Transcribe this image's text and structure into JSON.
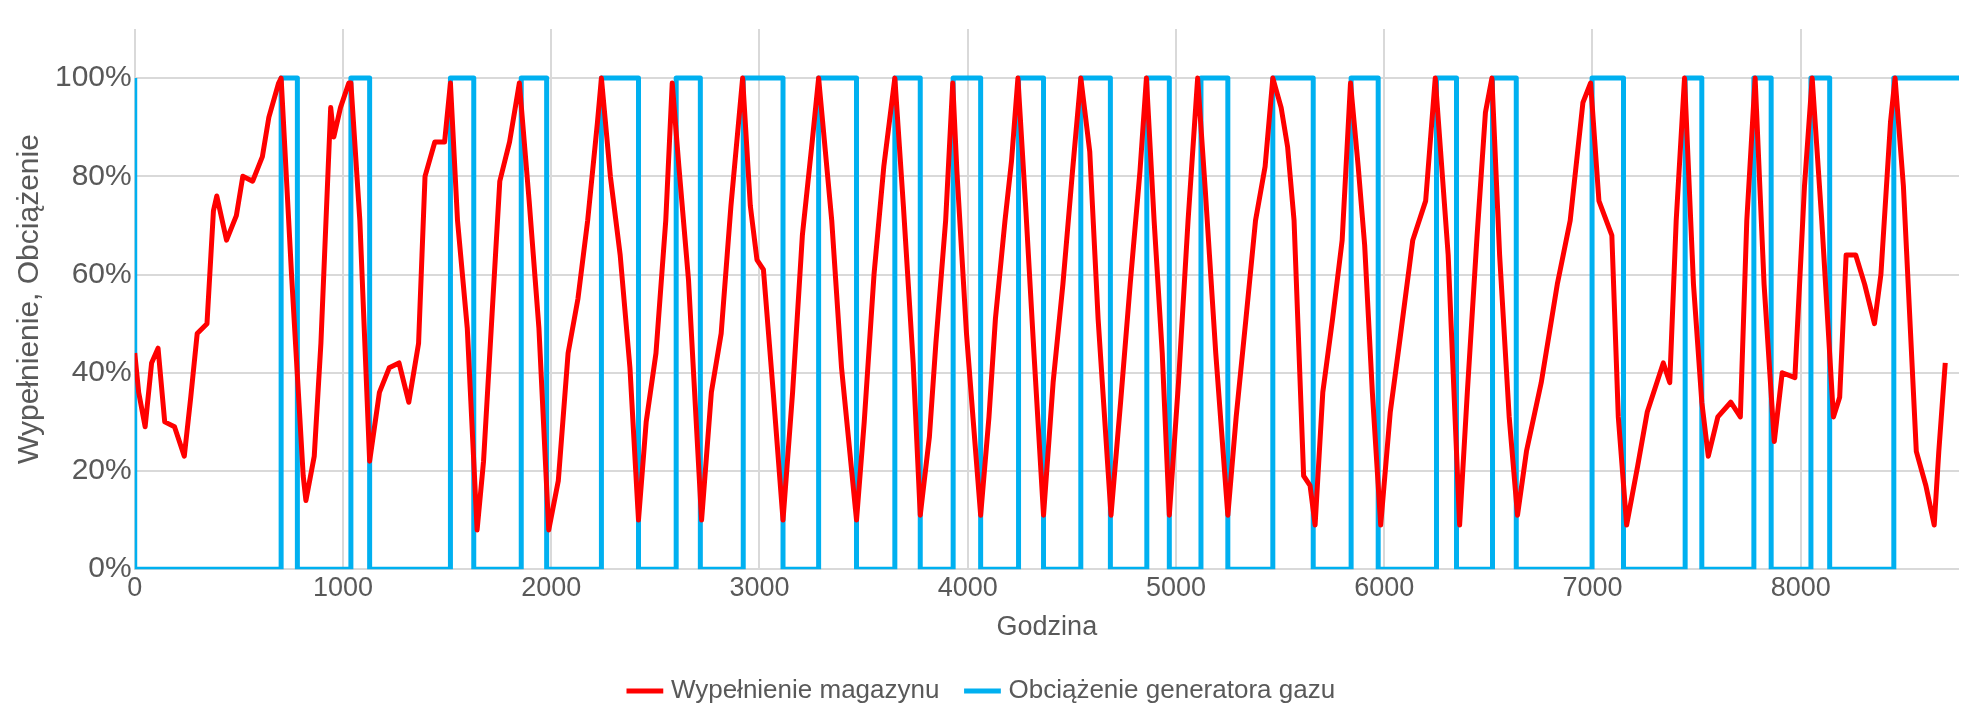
{
  "chart_data": {
    "type": "line",
    "xlabel": "Godzina",
    "ylabel": "Wypełnienie, Obciążenie",
    "xlim": [
      0,
      8760
    ],
    "xticks": [
      0,
      1000,
      2000,
      3000,
      4000,
      5000,
      6000,
      7000,
      8000
    ],
    "ylim": [
      0,
      110
    ],
    "yticks": [
      {
        "value": 0,
        "label": "0%"
      },
      {
        "value": 20,
        "label": "20%"
      },
      {
        "value": 40,
        "label": "40%"
      },
      {
        "value": 60,
        "label": "60%"
      },
      {
        "value": 80,
        "label": "80%"
      },
      {
        "value": 100,
        "label": "100%"
      }
    ],
    "grid": true,
    "legend": "bottom",
    "marker": "none",
    "series": [
      {
        "name": "Wypełnienie magazynu",
        "color": "#ff0000",
        "x": [
          0,
          19,
          50,
          81,
          112,
          144,
          191,
          238,
          269,
          300,
          347,
          378,
          394,
          441,
          488,
          519,
          566,
          613,
          644,
          691,
          703,
          753,
          809,
          822,
          862,
          894,
          941,
          956,
          988,
          1028,
          1038,
          1081,
          1128,
          1175,
          1222,
          1269,
          1316,
          1363,
          1394,
          1441,
          1488,
          1516,
          1550,
          1597,
          1644,
          1675,
          1716,
          1753,
          1800,
          1847,
          1894,
          1941,
          1988,
          2034,
          2081,
          2128,
          2175,
          2222,
          2241,
          2284,
          2331,
          2378,
          2419,
          2456,
          2503,
          2550,
          2581,
          2613,
          2659,
          2722,
          2769,
          2816,
          2863,
          2919,
          2956,
          2988,
          3019,
          3066,
          3113,
          3159,
          3206,
          3253,
          3284,
          3347,
          3394,
          3466,
          3503,
          3550,
          3597,
          3650,
          3691,
          3738,
          3772,
          3816,
          3847,
          3894,
          3928,
          3948,
          3994,
          4025,
          4062,
          4102,
          4133,
          4179,
          4210,
          4241,
          4278,
          4318,
          4364,
          4410,
          4457,
          4503,
          4543,
          4586,
          4626,
          4688,
          4734,
          4780,
          4827,
          4858,
          4895,
          4934,
          4968,
          5012,
          5058,
          5104,
          5141,
          5191,
          5249,
          5289,
          5336,
          5382,
          5428,
          5465,
          5505,
          5536,
          5567,
          5613,
          5644,
          5668,
          5705,
          5752,
          5798,
          5838,
          5875,
          5906,
          5943,
          5983,
          6029,
          6076,
          6137,
          6199,
          6245,
          6307,
          6362,
          6399,
          6446,
          6486,
          6517,
          6554,
          6600,
          6640,
          6683,
          6754,
          6831,
          6893,
          6954,
          6991,
          7031,
          7093,
          7124,
          7164,
          7217,
          7263,
          7340,
          7371,
          7402,
          7442,
          7485,
          7525,
          7556,
          7602,
          7664,
          7710,
          7741,
          7781,
          7824,
          7873,
          7911,
          7972,
          8018,
          8055,
          8101,
          8157,
          8187,
          8218,
          8264,
          8307,
          8354,
          8385,
          8431,
          8453,
          8493,
          8555,
          8601,
          8641,
          8663,
          8694
        ],
        "values": [
          44,
          36,
          29,
          42,
          45,
          30,
          29,
          23,
          35,
          48,
          50,
          73,
          76,
          67,
          72,
          80,
          79,
          84,
          92,
          99,
          100,
          60,
          19,
          14,
          23,
          46,
          94,
          88,
          94,
          99,
          99,
          71,
          22,
          36,
          41,
          42,
          34,
          46,
          80,
          87,
          87,
          99,
          71,
          49,
          8,
          22,
          52,
          79,
          87,
          99,
          75,
          49,
          8,
          18,
          44,
          55,
          71,
          91,
          100,
          80,
          64,
          41,
          10,
          30,
          44,
          71,
          99,
          82,
          59,
          10,
          36,
          48,
          74,
          100,
          74,
          63,
          61,
          36,
          10,
          36,
          68,
          87,
          100,
          71,
          41,
          10,
          30,
          60,
          82,
          100,
          74,
          42,
          11,
          27,
          46,
          71,
          99,
          81,
          48,
          31,
          11,
          31,
          51,
          71,
          83,
          100,
          74,
          44,
          11,
          38,
          58,
          81,
          100,
          85,
          51,
          11,
          34,
          58,
          81,
          100,
          71,
          44,
          11,
          38,
          71,
          100,
          77,
          44,
          11,
          31,
          51,
          71,
          82,
          100,
          94,
          86,
          71,
          19,
          17,
          9,
          36,
          51,
          67,
          99,
          82,
          66,
          36,
          9,
          32,
          47,
          67,
          75,
          100,
          64,
          9,
          36,
          68,
          93,
          100,
          64,
          31,
          11,
          24,
          38,
          58,
          71,
          95,
          99,
          75,
          68,
          31,
          9,
          21,
          32,
          42,
          38,
          71,
          100,
          58,
          34,
          23,
          31,
          34,
          31,
          71,
          100,
          58,
          26,
          40,
          39,
          78,
          100,
          71,
          31,
          35,
          64,
          64,
          58,
          50,
          60,
          91,
          100,
          78,
          24,
          17,
          9,
          24,
          42
        ]
      },
      {
        "name": "Obciążenie generatora gazu",
        "type": "step",
        "color": "#00b0f0",
        "x": [
          0,
          703,
          781,
          1038,
          1128,
          1516,
          1628,
          1856,
          1978,
          2241,
          2419,
          2600,
          2716,
          2922,
          3113,
          3284,
          3466,
          3650,
          3772,
          3930,
          4062,
          4244,
          4364,
          4543,
          4685,
          4860,
          4968,
          5120,
          5249,
          5465,
          5659,
          5841,
          5971,
          6251,
          6347,
          6520,
          6634,
          6998,
          7149,
          7445,
          7525,
          7775,
          7858,
          8049,
          8139,
          8447,
          8530,
          8760
        ],
        "values": [
          100,
          0,
          100,
          0,
          100,
          0,
          100,
          0,
          100,
          0,
          100,
          0,
          100,
          0,
          100,
          0,
          100,
          0,
          100,
          0,
          100,
          0,
          100,
          0,
          100,
          0,
          100,
          0,
          100,
          0,
          100,
          0,
          100,
          0,
          100,
          0,
          100,
          0,
          100,
          0,
          100,
          0,
          100,
          0,
          100,
          0,
          100,
          100
        ]
      }
    ]
  }
}
